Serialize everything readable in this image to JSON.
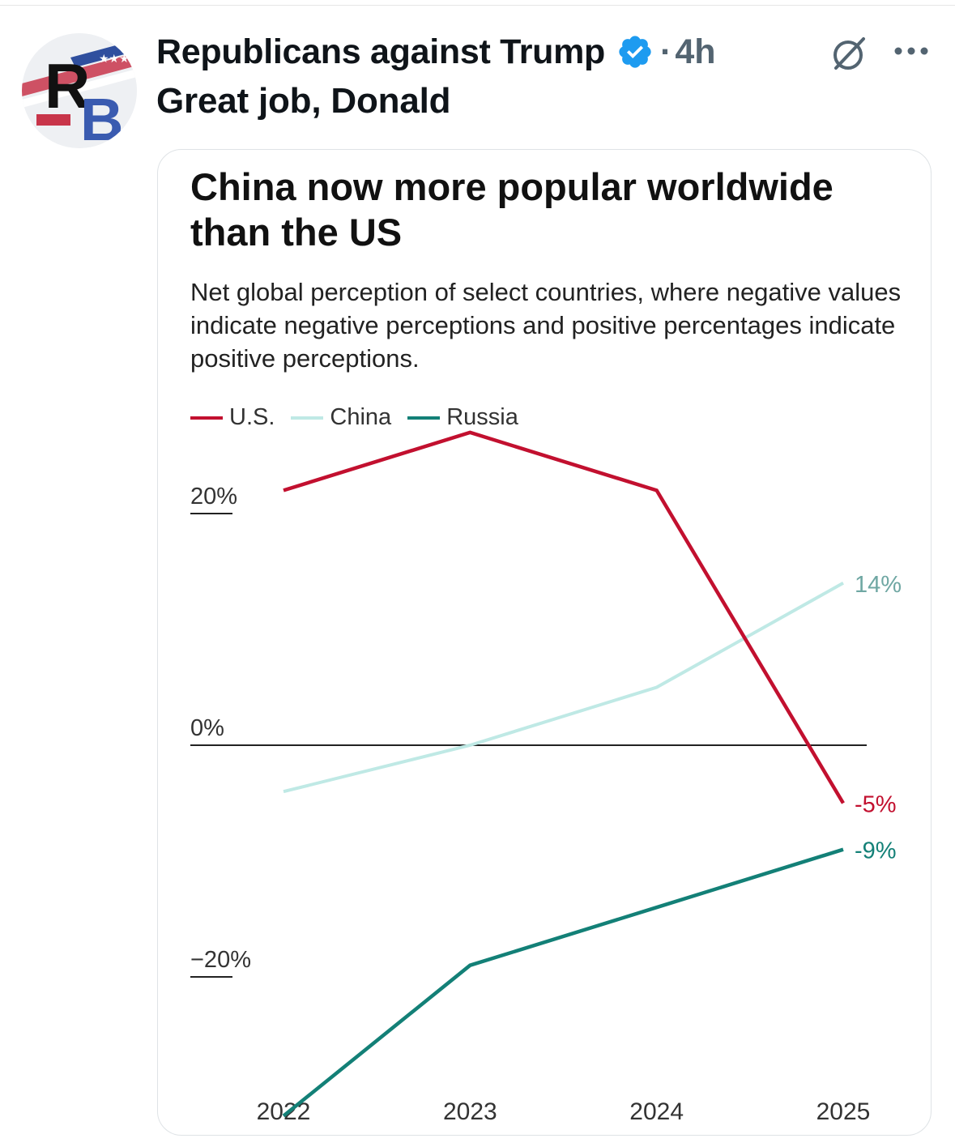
{
  "tweet": {
    "author_name": "Republicans against Trump",
    "separator": "·",
    "timestamp": "4h",
    "text": "Great job, Donald",
    "avatar_text": "RB"
  },
  "icons": {
    "verified": "verified-badge-icon",
    "grok": "grok-icon",
    "more": "more-options-icon"
  },
  "colors": {
    "us": "#c2102f",
    "china": "#bfe9e5",
    "russia": "#138077",
    "verified": "#1d9bf0"
  },
  "chart_data": {
    "type": "line",
    "title": "China now more popular worldwide than the US",
    "subtitle": "Net global perception of select countries, where negative values indicate negative perceptions and positive percentages indicate positive perceptions.",
    "x": [
      2022,
      2023,
      2024,
      2025
    ],
    "x_tick_labels": [
      "2022",
      "2023",
      "2024",
      "2025"
    ],
    "y_ticks": [
      20,
      0,
      -20
    ],
    "y_tick_labels": [
      "20%",
      "0%",
      "−20%"
    ],
    "ylim": [
      -33,
      29
    ],
    "series": [
      {
        "name": "U.S.",
        "color": "#c2102f",
        "values": [
          22,
          27,
          22,
          -5
        ],
        "end_label": "-5%"
      },
      {
        "name": "China",
        "color": "#bfe9e5",
        "values": [
          -4,
          0,
          5,
          14
        ],
        "end_label": "14%"
      },
      {
        "name": "Russia",
        "color": "#138077",
        "values": [
          -32,
          -19,
          -14,
          -9
        ],
        "end_label": "-9%"
      }
    ],
    "legend_position": "top-left",
    "grid": false
  }
}
